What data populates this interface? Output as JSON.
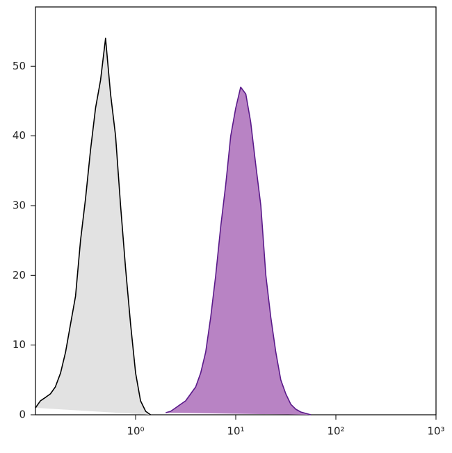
{
  "chart_data": {
    "type": "area",
    "xscale": "log",
    "xlim": [
      0.1,
      1000
    ],
    "ylim": [
      0,
      58.5
    ],
    "xticks": [
      {
        "value": 1,
        "label": "10⁰"
      },
      {
        "value": 10,
        "label": "10¹"
      },
      {
        "value": 100,
        "label": "10²"
      },
      {
        "value": 1000,
        "label": "10³"
      }
    ],
    "yticks": [
      0,
      10,
      20,
      30,
      40,
      50
    ],
    "series": [
      {
        "color": "#000000",
        "fill": "#e2e2e2",
        "x": [
          0.1,
          0.112,
          0.126,
          0.141,
          0.158,
          0.178,
          0.2,
          0.224,
          0.251,
          0.282,
          0.316,
          0.355,
          0.398,
          0.447,
          0.501,
          0.562,
          0.631,
          0.708,
          0.794,
          0.891,
          1,
          1.12,
          1.26,
          1.41
        ],
        "values": [
          1,
          2,
          2.5,
          3,
          4,
          6,
          9,
          13,
          17,
          25,
          31,
          38,
          44,
          48,
          54,
          46,
          40,
          30,
          21,
          13,
          6,
          2,
          0.5,
          0
        ]
      },
      {
        "color": "#5a1a8a",
        "fill": "#b883c4",
        "x": [
          2,
          2.24,
          2.51,
          2.82,
          3.16,
          3.55,
          3.98,
          4.47,
          5.01,
          5.62,
          6.31,
          7.08,
          7.94,
          8.91,
          10,
          11.2,
          12.6,
          14.1,
          15.8,
          17.8,
          20,
          22.4,
          25.1,
          28.2,
          31.6,
          35.5,
          39.8,
          44.7,
          50.1,
          56.2
        ],
        "values": [
          0.3,
          0.5,
          1,
          1.5,
          2,
          3,
          4,
          6,
          9,
          14,
          20,
          27,
          33,
          40,
          44,
          47,
          46,
          42,
          36,
          30,
          20,
          14,
          9,
          5,
          3,
          1.5,
          0.8,
          0.4,
          0.2,
          0
        ]
      }
    ]
  }
}
